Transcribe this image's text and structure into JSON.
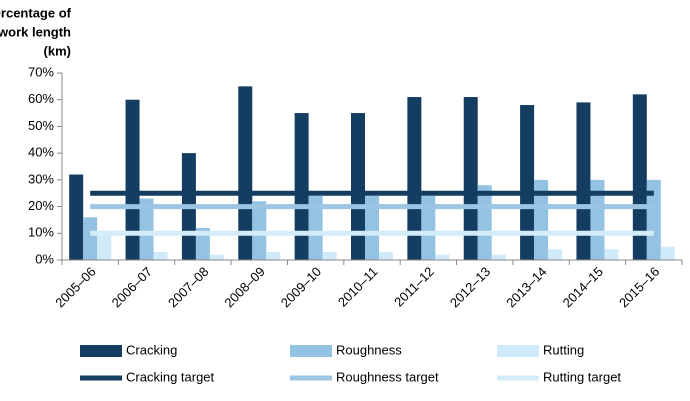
{
  "chart_data": {
    "type": "bar",
    "y_label_lines": [
      "Percentage of",
      "network length",
      "(km)"
    ],
    "categories": [
      "2005–06",
      "2006–07",
      "2007–08",
      "2008–09",
      "2009–10",
      "2010–11",
      "2011–12",
      "2012–13",
      "2013–14",
      "2014–15",
      "2015–16"
    ],
    "series": [
      {
        "name": "Cracking",
        "type": "bar",
        "color": "#143d61",
        "values": [
          32,
          60,
          40,
          65,
          55,
          55,
          61,
          61,
          58,
          59,
          62
        ]
      },
      {
        "name": "Roughness",
        "type": "bar",
        "color": "#94c2e3",
        "values": [
          16,
          23,
          12,
          22,
          24,
          24,
          24,
          28,
          30,
          30,
          30
        ]
      },
      {
        "name": "Rutting",
        "type": "bar",
        "color": "#cfeaf8",
        "values": [
          9,
          3,
          2,
          3,
          3,
          3,
          2,
          2,
          4,
          4,
          5
        ]
      },
      {
        "name": "Cracking target",
        "type": "line",
        "color": "#143d61",
        "values": [
          25,
          25,
          25,
          25,
          25,
          25,
          25,
          25,
          25,
          25,
          25
        ]
      },
      {
        "name": "Roughness target",
        "type": "line",
        "color": "#9cc5e4",
        "values": [
          20,
          20,
          20,
          20,
          20,
          20,
          20,
          20,
          20,
          20,
          20
        ]
      },
      {
        "name": "Rutting target",
        "type": "line",
        "color": "#d3ecf9",
        "values": [
          10,
          10,
          10,
          10,
          10,
          10,
          10,
          10,
          10,
          10,
          10
        ]
      }
    ],
    "ylim": [
      0,
      70
    ],
    "yticks": [
      {
        "value": 0,
        "label": "0%"
      },
      {
        "value": 10,
        "label": "10%"
      },
      {
        "value": 20,
        "label": "20%"
      },
      {
        "value": 30,
        "label": "30%"
      },
      {
        "value": 40,
        "label": "40%"
      },
      {
        "value": 50,
        "label": "50%"
      },
      {
        "value": 60,
        "label": "60%"
      },
      {
        "value": 70,
        "label": "70%"
      }
    ]
  }
}
